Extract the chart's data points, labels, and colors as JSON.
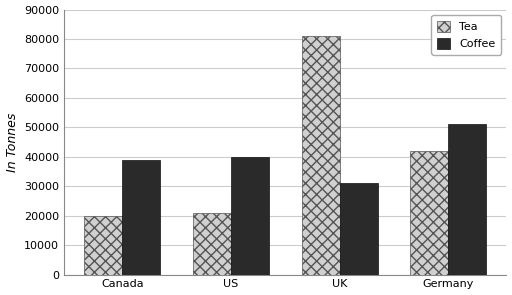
{
  "categories": [
    "Canada",
    "US",
    "UK",
    "Germany"
  ],
  "tea_values": [
    20000,
    21000,
    81000,
    42000
  ],
  "coffee_values": [
    39000,
    40000,
    31000,
    51000
  ],
  "tea_color": "#d0d0d0",
  "tea_hatch": "xxx",
  "coffee_color": "#2a2a2a",
  "coffee_hatch": "",
  "ylabel": "In Tonnes",
  "ylim": [
    0,
    90000
  ],
  "yticks": [
    0,
    10000,
    20000,
    30000,
    40000,
    50000,
    60000,
    70000,
    80000,
    90000
  ],
  "legend_labels": [
    "Tea",
    "Coffee"
  ],
  "bar_width": 0.35,
  "background_color": "#ffffff",
  "grid_color": "#cccccc",
  "axis_fontsize": 9,
  "tick_fontsize": 8
}
